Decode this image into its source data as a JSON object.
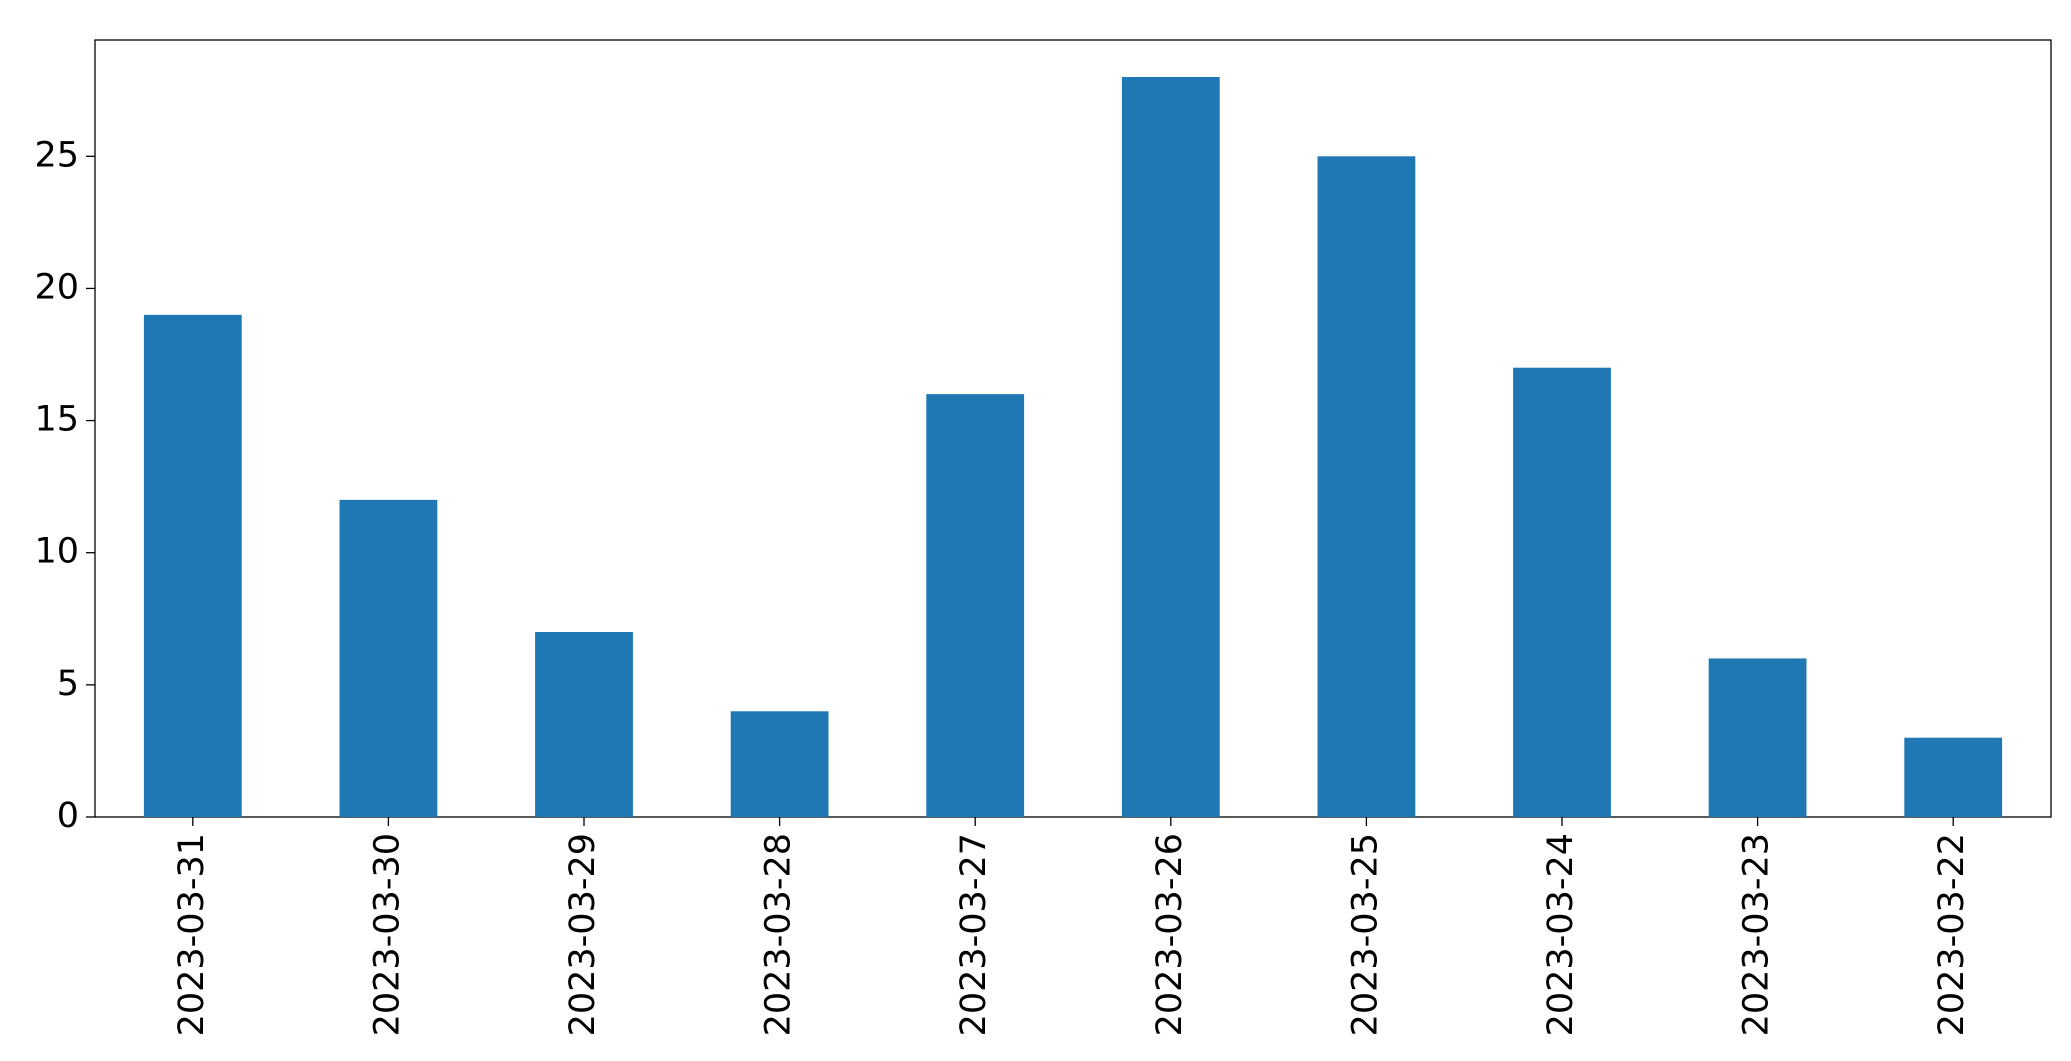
{
  "chart_data": {
    "type": "bar",
    "categories": [
      "2023-03-31",
      "2023-03-30",
      "2023-03-29",
      "2023-03-28",
      "2023-03-27",
      "2023-03-26",
      "2023-03-25",
      "2023-03-24",
      "2023-03-23",
      "2023-03-22"
    ],
    "values": [
      19,
      12,
      7,
      4,
      16,
      28,
      25,
      17,
      6,
      3
    ],
    "color": "#1f77b4",
    "ylim": [
      0,
      29.4
    ],
    "yticks": [
      0,
      5,
      10,
      15,
      20,
      25
    ],
    "grid": false
  }
}
